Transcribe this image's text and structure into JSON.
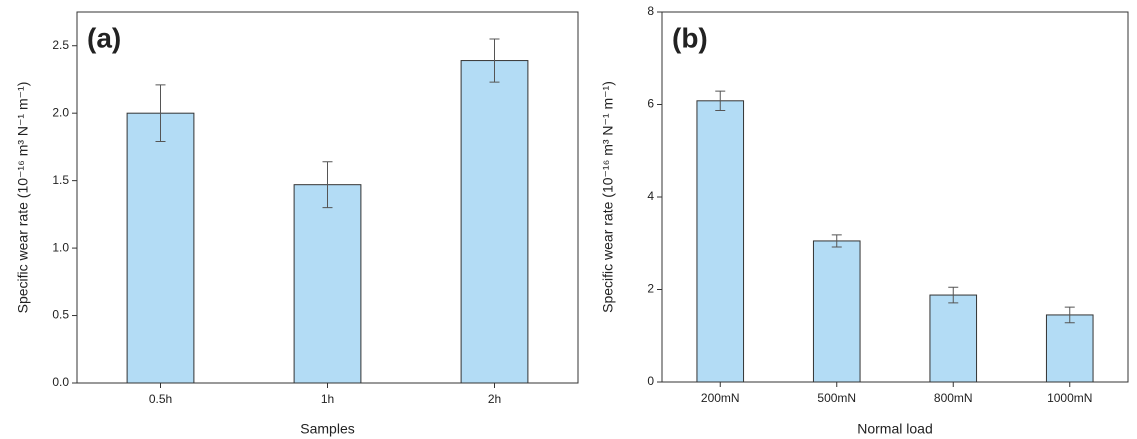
{
  "chart_data": [
    {
      "type": "bar",
      "panel_label": "(a)",
      "x_label": "Samples",
      "y_label": "Specific wear rate (10⁻¹⁶ m³ N⁻¹ m⁻¹)",
      "categories": [
        "0.5h",
        "1h",
        "2h"
      ],
      "values": [
        2.0,
        1.47,
        2.39
      ],
      "errors": [
        0.21,
        0.17,
        0.16
      ],
      "color": "#b3dcf5",
      "ylim": [
        0,
        2.75
      ],
      "yticks": [
        {
          "value": 0,
          "label": "0.0"
        },
        0.5,
        {
          "value": 1,
          "label": "1.0"
        },
        1.5,
        {
          "value": 2,
          "label": "2.0"
        },
        2.5
      ]
    },
    {
      "type": "bar",
      "panel_label": "(b)",
      "x_label": "Normal load",
      "y_label": "Specific wear rate (10⁻¹⁶ m³ N⁻¹ m⁻¹)",
      "categories": [
        "200mN",
        "500mN",
        "800mN",
        "1000mN"
      ],
      "values": [
        6.08,
        3.05,
        1.88,
        1.45
      ],
      "errors": [
        0.21,
        0.13,
        0.17,
        0.17
      ],
      "color": "#b3dcf5",
      "ylim": [
        0,
        8
      ],
      "yticks": [
        0,
        2,
        4,
        6,
        8
      ]
    }
  ]
}
